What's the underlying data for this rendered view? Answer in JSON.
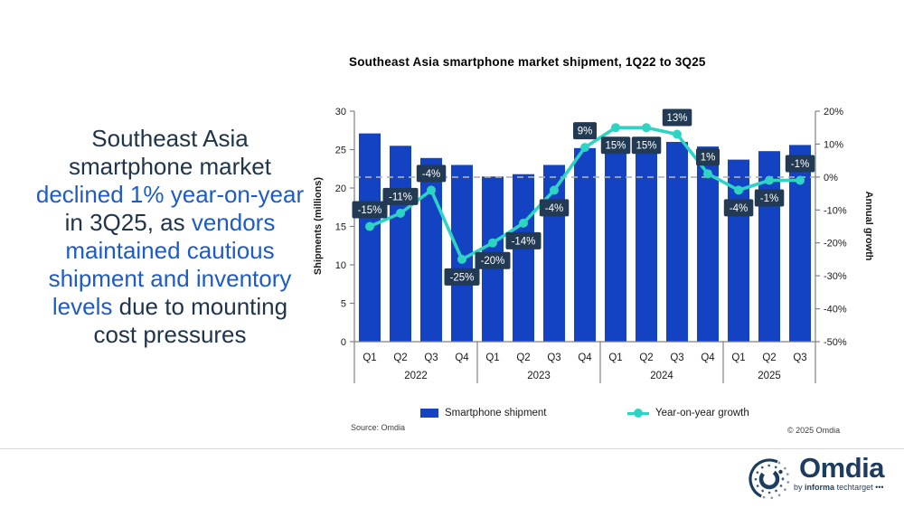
{
  "headline": {
    "segments": [
      {
        "text": "Southeast Asia smartphone market ",
        "color": "#20344a"
      },
      {
        "text": "declined 1% year-on-year",
        "color": "#1e5bc6"
      },
      {
        "text": " in 3Q25, as ",
        "color": "#20344a"
      },
      {
        "text": "vendors maintained cautious shipment and inventory levels",
        "color": "#1e5bc6"
      },
      {
        "text": " due to mounting cost pressures",
        "color": "#20344a"
      }
    ]
  },
  "chart_title": "Southeast Asia smartphone market shipment, 1Q22 to 3Q25",
  "chart_data": {
    "type": "bar+line",
    "categories": [
      "Q1",
      "Q2",
      "Q3",
      "Q4",
      "Q1",
      "Q2",
      "Q3",
      "Q4",
      "Q1",
      "Q2",
      "Q3",
      "Q4",
      "Q1",
      "Q2",
      "Q3"
    ],
    "year_groups": [
      {
        "label": "2022",
        "count": 4
      },
      {
        "label": "2023",
        "count": 4
      },
      {
        "label": "2024",
        "count": 4
      },
      {
        "label": "2025",
        "count": 3
      }
    ],
    "series": [
      {
        "name": "Smartphone shipment",
        "type": "bar",
        "color": "#1342c2",
        "values": [
          27.1,
          25.5,
          23.9,
          23.0,
          21.5,
          21.8,
          23.0,
          25.2,
          24.6,
          25.0,
          26.0,
          25.4,
          23.7,
          24.8,
          25.6
        ]
      },
      {
        "name": "Year-on-year growth",
        "type": "line",
        "color": "#2ed3c3",
        "values": [
          -15,
          -11,
          -4,
          -25,
          -20,
          -14,
          -4,
          9,
          15,
          15,
          13,
          1,
          -4,
          -1,
          -1
        ],
        "labels": [
          "-15%",
          "-11%",
          "-4%",
          "-25%",
          "-20%",
          "-14%",
          "-4%",
          "9%",
          "15%",
          "15%",
          "13%",
          "1%",
          "-4%",
          "-1%",
          "-1%"
        ],
        "label_positions": [
          "above",
          "above",
          "above",
          "below",
          "below",
          "below",
          "below",
          "above",
          "below",
          "below",
          "above",
          "above",
          "below",
          "below",
          "above"
        ]
      }
    ],
    "left_axis": {
      "label": "Shipments (millions)",
      "min": 0,
      "max": 30,
      "step": 5,
      "ticks": [
        "30",
        "25",
        "20",
        "15",
        "10",
        "5",
        "0"
      ]
    },
    "right_axis": {
      "label": "Annual growth",
      "min": -50,
      "max": 20,
      "step": 10,
      "ticks": [
        "20%",
        "10%",
        "0%",
        "-10%",
        "-20%",
        "-30%",
        "-40%",
        "-50%"
      ]
    },
    "zero_line_value": 0,
    "label_box_color": "#233a54",
    "label_text_color": "#ffffff",
    "axis_color": "#808080",
    "tick_text_color": "#1a1a1a",
    "dashed_line_color": "#b3b3b3"
  },
  "legend": [
    {
      "label": "Smartphone shipment",
      "color": "#1342c2"
    },
    {
      "label": "Year-on-year growth",
      "color": "#2ed3c3"
    }
  ],
  "source": "Source: Omdia",
  "copyright": "© 2025 Omdia",
  "footer_logo": {
    "brand": "Omdia",
    "tagline_prefix": "by ",
    "tagline_bold": "informa",
    "tagline_rest": " techtarget ",
    "dots": "•••",
    "color": "#1d3c5e"
  }
}
